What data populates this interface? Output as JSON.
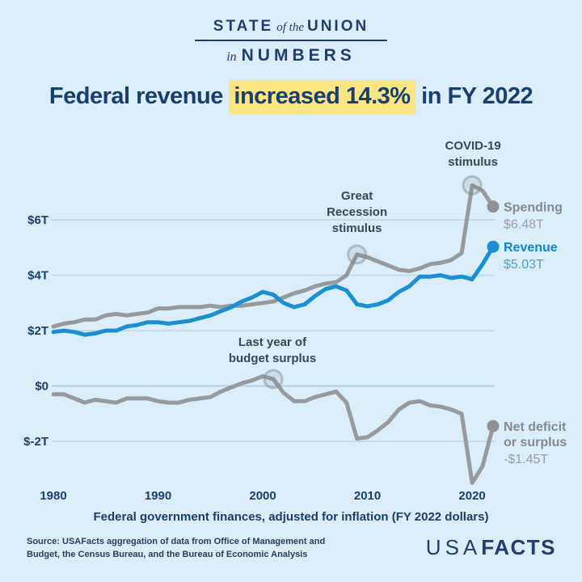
{
  "brand": {
    "line1_word1": "STATE",
    "line1_word2": "of the",
    "line1_word3": "UNION",
    "line2_word1": "in",
    "line2_word2": "NUMBERS"
  },
  "title": {
    "prefix": "Federal revenue ",
    "highlight": "increased 14.3%",
    "suffix": " in FY 2022"
  },
  "footer": {
    "source_line1": "Source: USAFacts aggregation of data from Office of Management and",
    "source_line2": "Budget, the Census Bureau, and the Bureau of Economic Analysis",
    "logo_part1": "USA",
    "logo_part2": "FACTS"
  },
  "colors": {
    "background": "#dbedf8",
    "navy": "#1d3e6e",
    "title_navy": "#17406f",
    "highlight_yellow": "#f9e583",
    "revenue_blue": "#1b8fd4",
    "revenue_label_blue": "#0d85cf",
    "spending_gray": "#97999b",
    "label_gray": "#85898e",
    "value_gray": "#9b9fa4",
    "gridline": "#c3dbe9",
    "zero_line": "#b3d0e0",
    "annotation_text": "#3b4754"
  },
  "chart_data": {
    "type": "line",
    "title": "Federal revenue increased 14.3% in FY 2022",
    "caption": "Federal government finances, adjusted for inflation (FY 2022 dollars)",
    "unit": "trillions of FY 2022 dollars",
    "grid": "horizontal",
    "legend_position": "right-end-labels",
    "x": [
      1980,
      1981,
      1982,
      1983,
      1984,
      1985,
      1986,
      1987,
      1988,
      1989,
      1990,
      1991,
      1992,
      1993,
      1994,
      1995,
      1996,
      1997,
      1998,
      1999,
      2000,
      2001,
      2002,
      2003,
      2004,
      2005,
      2006,
      2007,
      2008,
      2009,
      2010,
      2011,
      2012,
      2013,
      2014,
      2015,
      2016,
      2017,
      2018,
      2019,
      2020,
      2021,
      2022
    ],
    "x_ticks": [
      1980,
      1990,
      2000,
      2010,
      2020
    ],
    "x_tick_labels": [
      "1980",
      "1990",
      "2000",
      "2010",
      "2020"
    ],
    "y_ticks": [
      6,
      4,
      2,
      0,
      -2
    ],
    "y_tick_labels": [
      "$6T",
      "$4T",
      "$2T",
      "$0",
      "$-2T"
    ],
    "ylim": [
      -3.8,
      7.6
    ],
    "xlim": [
      1980,
      2022
    ],
    "series": [
      {
        "name": "Spending",
        "color": "#97999b",
        "end_label_lines": [
          "Spending"
        ],
        "end_value_label": "$6.48T",
        "end_value": 6.48,
        "values": [
          2.15,
          2.25,
          2.3,
          2.4,
          2.4,
          2.55,
          2.6,
          2.55,
          2.6,
          2.65,
          2.8,
          2.8,
          2.85,
          2.85,
          2.85,
          2.9,
          2.85,
          2.9,
          2.9,
          2.95,
          3.0,
          3.05,
          3.2,
          3.35,
          3.45,
          3.6,
          3.7,
          3.75,
          4.0,
          4.75,
          4.65,
          4.5,
          4.35,
          4.2,
          4.15,
          4.25,
          4.4,
          4.45,
          4.55,
          4.8,
          7.25,
          7.05,
          6.48
        ]
      },
      {
        "name": "Revenue",
        "color": "#1b8fd4",
        "end_label_lines": [
          "Revenue"
        ],
        "end_value_label": "$5.03T",
        "end_value": 5.03,
        "values": [
          1.95,
          2.0,
          1.95,
          1.85,
          1.9,
          2.0,
          2.0,
          2.15,
          2.2,
          2.3,
          2.3,
          2.25,
          2.3,
          2.35,
          2.45,
          2.55,
          2.7,
          2.85,
          3.05,
          3.2,
          3.4,
          3.3,
          3.0,
          2.85,
          2.95,
          3.25,
          3.5,
          3.6,
          3.45,
          2.95,
          2.88,
          2.95,
          3.1,
          3.4,
          3.6,
          3.95,
          3.95,
          4.0,
          3.9,
          3.95,
          3.85,
          4.4,
          5.03
        ]
      },
      {
        "name": "Net deficit or surplus",
        "color": "#97999b",
        "end_label_lines": [
          "Net deficit",
          "or surplus"
        ],
        "end_value_label": "-$1.45T",
        "end_value": -1.45,
        "values": [
          -0.3,
          -0.3,
          -0.45,
          -0.6,
          -0.5,
          -0.55,
          -0.6,
          -0.45,
          -0.45,
          -0.45,
          -0.55,
          -0.6,
          -0.6,
          -0.5,
          -0.45,
          -0.4,
          -0.2,
          -0.05,
          0.1,
          0.2,
          0.35,
          0.25,
          -0.25,
          -0.55,
          -0.55,
          -0.4,
          -0.3,
          -0.2,
          -0.6,
          -1.9,
          -1.85,
          -1.6,
          -1.3,
          -0.85,
          -0.6,
          -0.55,
          -0.7,
          -0.75,
          -0.85,
          -1.0,
          -3.5,
          -2.9,
          -1.45
        ]
      }
    ],
    "annotations": [
      {
        "lines": [
          "COVID-19",
          "stimulus"
        ],
        "series": "Spending",
        "year": 2020,
        "value": 7.25
      },
      {
        "lines": [
          "Great",
          "Recession",
          "stimulus"
        ],
        "series": "Spending",
        "year": 2009,
        "value": 4.75
      },
      {
        "lines": [
          "Last year of",
          "budget surplus"
        ],
        "series": "Net deficit or surplus",
        "year": 2001,
        "value": 0.25
      }
    ]
  }
}
